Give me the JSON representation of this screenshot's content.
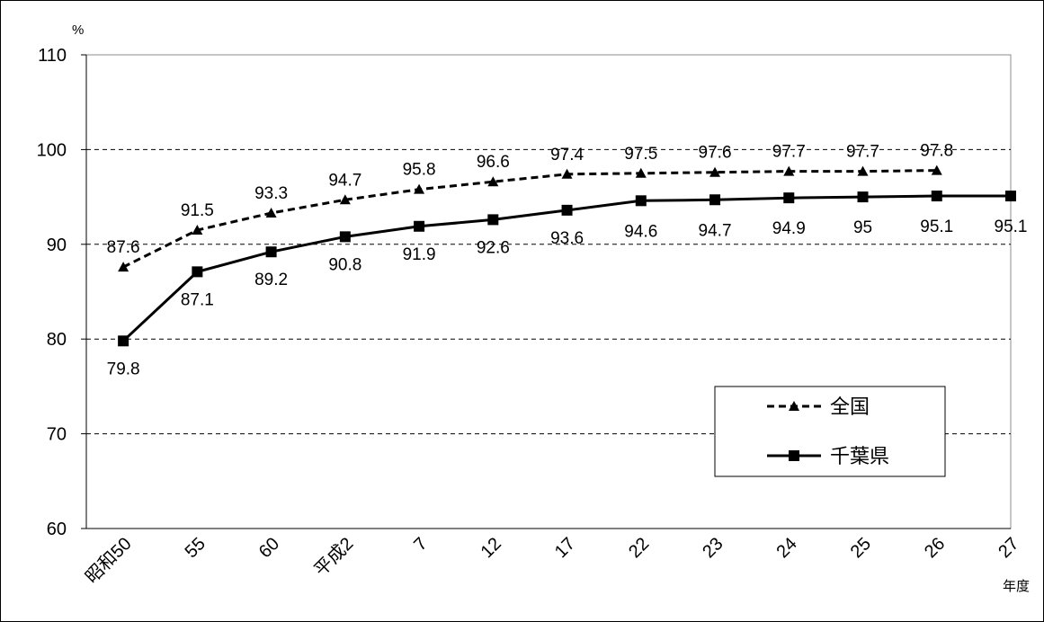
{
  "chart_data": {
    "type": "line",
    "y_unit": "%",
    "x_unit": "年度",
    "categories": [
      "昭和50",
      "55",
      "60",
      "平成2",
      "7",
      "12",
      "17",
      "22",
      "23",
      "24",
      "25",
      "26",
      "27"
    ],
    "ylim": [
      60,
      110
    ],
    "yticks": [
      "60",
      "70",
      "80",
      "90",
      "100",
      "110"
    ],
    "grid": true,
    "legend_position": "lower-right",
    "series": [
      {
        "name": "全国",
        "style": "dashed",
        "marker": "triangle",
        "color": "#000000",
        "values": [
          87.6,
          91.5,
          93.3,
          94.7,
          95.8,
          96.6,
          97.4,
          97.5,
          97.6,
          97.7,
          97.7,
          97.8,
          null
        ],
        "labels": [
          "87.6",
          "91.5",
          "93.3",
          "94.7",
          "95.8",
          "96.6",
          "97.4",
          "97.5",
          "97.6",
          "97.7",
          "97.7",
          "97.8",
          ""
        ]
      },
      {
        "name": "千葉県",
        "style": "solid",
        "marker": "square",
        "color": "#000000",
        "values": [
          79.8,
          87.1,
          89.2,
          90.8,
          91.9,
          92.6,
          93.6,
          94.6,
          94.7,
          94.9,
          95,
          95.1,
          95.1
        ],
        "labels": [
          "79.8",
          "87.1",
          "89.2",
          "90.8",
          "91.9",
          "92.6",
          "93.6",
          "94.6",
          "94.7",
          "94.9",
          "95",
          "95.1",
          "95.1"
        ]
      }
    ]
  }
}
